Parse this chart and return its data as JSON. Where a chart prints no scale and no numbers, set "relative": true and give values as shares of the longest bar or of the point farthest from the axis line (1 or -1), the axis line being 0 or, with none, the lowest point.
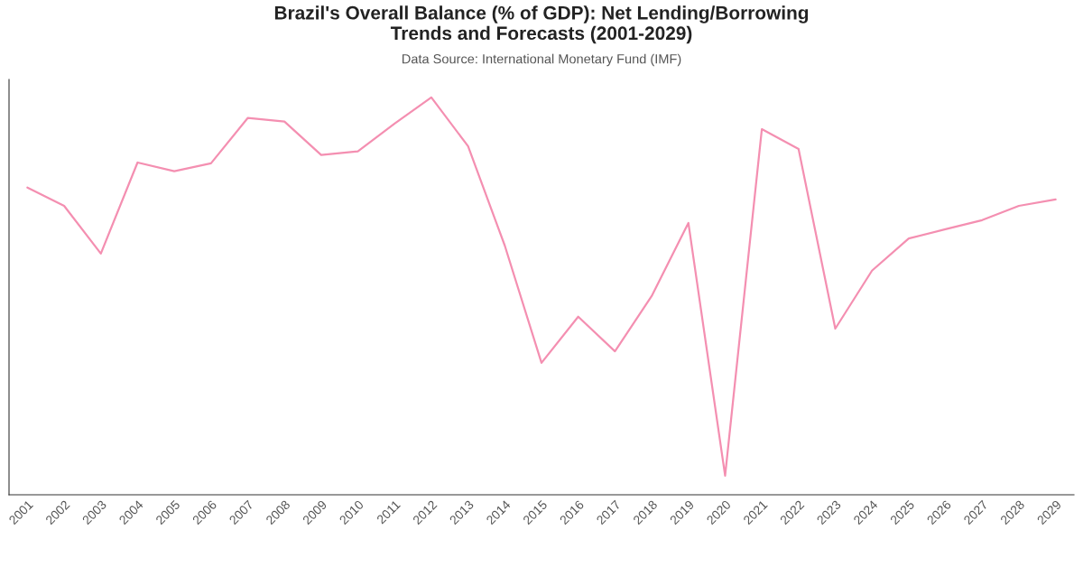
{
  "chart_data": {
    "type": "line",
    "title": "Brazil's Overall Balance (% of GDP): Net Lending/Borrowing\nTrends and Forecasts (2001-2029)",
    "subtitle": "Data Source: International Monetary Fund (IMF)",
    "relative": true,
    "categories": [
      "2001",
      "2002",
      "2003",
      "2004",
      "2005",
      "2006",
      "2007",
      "2008",
      "2009",
      "2010",
      "2011",
      "2012",
      "2013",
      "2014",
      "2015",
      "2016",
      "2017",
      "2018",
      "2019",
      "2020",
      "2021",
      "2022",
      "2023",
      "2024",
      "2025",
      "2026",
      "2027",
      "2028",
      "2029"
    ],
    "series": [
      {
        "color": "#f48fb1",
        "values": [
          0.773,
          0.727,
          0.607,
          0.836,
          0.814,
          0.834,
          0.948,
          0.939,
          0.855,
          0.864,
          0.934,
          1,
          0.877,
          0.627,
          0.332,
          0.448,
          0.361,
          0.5,
          0.684,
          0.048,
          0.92,
          0.87,
          0.418,
          0.564,
          0.645,
          0.668,
          0.691,
          0.727,
          0.743
        ]
      }
    ],
    "grid": false,
    "legend": false,
    "marker": "none",
    "line_style": "solid",
    "tick_labels": "x"
  }
}
